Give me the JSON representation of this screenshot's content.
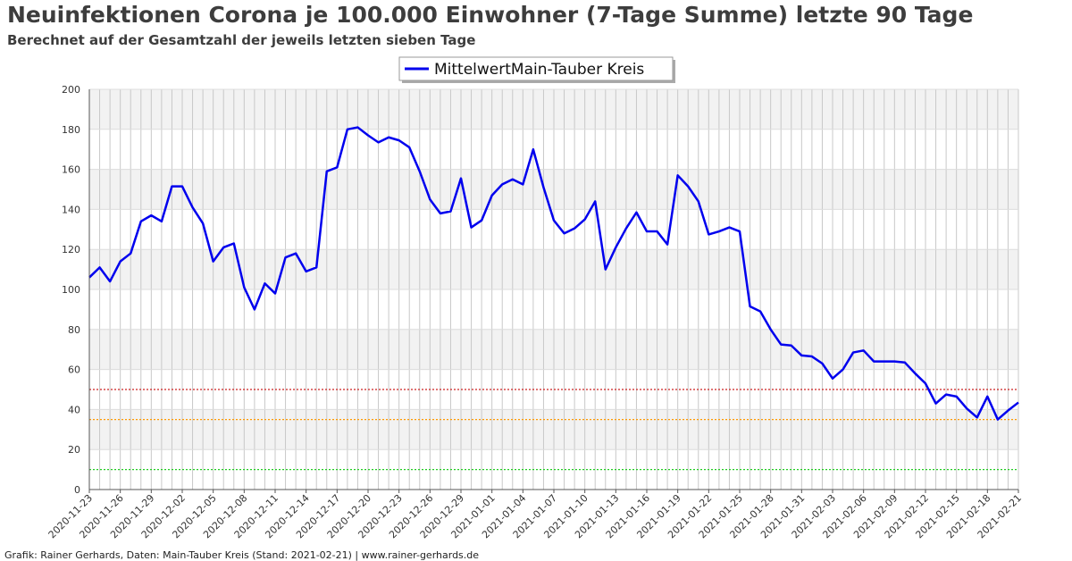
{
  "header": {
    "title": "Neuinfektionen Corona je 100.000 Einwohner (7-Tage Summe) letzte 90 Tage",
    "subtitle": "Berechnet auf der Gesamtzahl der jeweils letzten sieben Tage"
  },
  "footer": {
    "credit": "Grafik: Rainer Gerhards, Daten: Main-Tauber Kreis (Stand: 2021-02-21) | www.rainer-gerhards.de"
  },
  "chart_data": {
    "type": "line",
    "title": "Neuinfektionen Corona je 100.000 Einwohner (7-Tage Summe) letzte 90 Tage",
    "subtitle": "Berechnet auf der Gesamtzahl der jeweils letzten sieben Tage",
    "xlabel": "",
    "ylabel": "",
    "ylim": [
      0,
      200
    ],
    "yticks": [
      0,
      20,
      40,
      60,
      80,
      100,
      120,
      140,
      160,
      180,
      200
    ],
    "xlim": [
      "2020-11-23",
      "2021-02-21"
    ],
    "xtick_labels": [
      "2020-11-23",
      "2020-11-26",
      "2020-11-29",
      "2020-12-02",
      "2020-12-05",
      "2020-12-08",
      "2020-12-11",
      "2020-12-14",
      "2020-12-17",
      "2020-12-20",
      "2020-12-23",
      "2020-12-26",
      "2020-12-29",
      "2021-01-01",
      "2021-01-04",
      "2021-01-07",
      "2021-01-10",
      "2021-01-13",
      "2021-01-16",
      "2021-01-19",
      "2021-01-22",
      "2021-01-25",
      "2021-01-28",
      "2021-01-31",
      "2021-02-03",
      "2021-02-06",
      "2021-02-09",
      "2021-02-12",
      "2021-02-15",
      "2021-02-18",
      "2021-02-21"
    ],
    "grid": true,
    "legend_position": "top-center",
    "reference_lines": [
      {
        "value": 50,
        "color": "#cc2222"
      },
      {
        "value": 35,
        "color": "#ff9900"
      },
      {
        "value": 10,
        "color": "#22cc22"
      }
    ],
    "series": [
      {
        "name": "MittelwertMain-Tauber Kreis",
        "color": "#0000ee",
        "values": [
          106,
          111,
          104,
          114,
          118,
          134,
          137,
          134,
          151.5,
          151.5,
          141,
          133,
          114,
          121,
          123,
          101,
          90,
          103,
          98,
          116,
          118,
          109,
          111,
          159,
          161,
          180,
          181,
          177,
          173.5,
          176,
          174.5,
          171,
          159,
          145,
          138,
          139,
          155.5,
          131,
          134.5,
          147,
          152.5,
          155,
          152.5,
          170,
          151,
          134.5,
          128,
          130.5,
          135,
          144,
          110,
          121,
          130.5,
          138.5,
          129,
          129,
          122.5,
          157,
          151.5,
          144,
          127.5,
          129,
          131,
          129,
          91.5,
          89,
          80,
          72.5,
          72,
          67,
          66.5,
          63,
          55.5,
          60,
          68.5,
          69.5,
          64,
          64,
          64,
          63.5,
          58,
          53,
          43,
          47.5,
          46.5,
          40.5,
          36,
          46.5,
          35,
          39.5,
          43.5
        ]
      }
    ]
  }
}
